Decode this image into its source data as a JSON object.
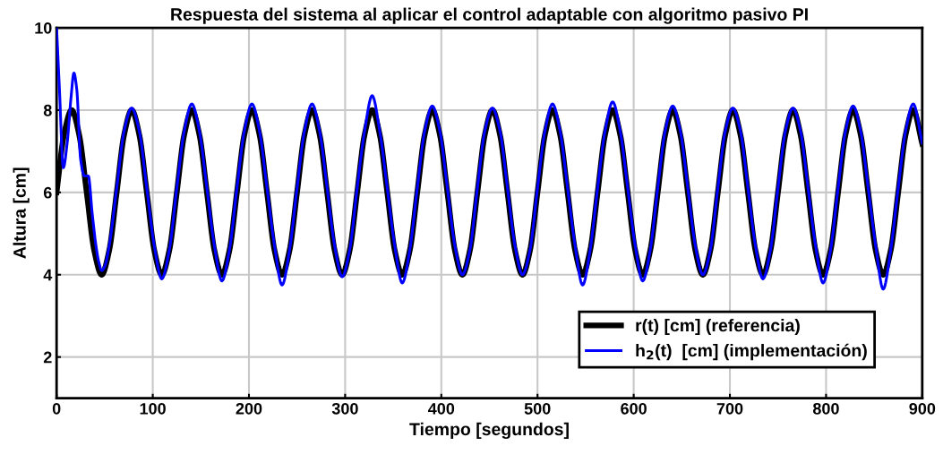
{
  "chart_data": {
    "type": "line",
    "title": "Respuesta del sistema al aplicar el control adaptable con algoritmo pasivo PI",
    "xlabel": "Tiempo [segundos]",
    "ylabel": "Altura [cm]",
    "xlim": [
      0,
      900
    ],
    "xticks": [
      0,
      100,
      200,
      300,
      400,
      500,
      600,
      700,
      800,
      900
    ],
    "ylim": [
      1,
      10
    ],
    "yticks": [
      2,
      4,
      6,
      8,
      10
    ],
    "grid": true,
    "legend": "bottom right",
    "marker": "none",
    "line_style": "solid",
    "series": [
      {
        "name": "r(t) [cm] (referencia)",
        "color": "#000000",
        "x": [
          0,
          7.8,
          15.6,
          23.4,
          31.3,
          39.1,
          46.9,
          54.7,
          62.5,
          70.3,
          78.1,
          85.9,
          93.8,
          101.6,
          109.4,
          117.2,
          125,
          132.8,
          140.6,
          148.4,
          156.3,
          164.1,
          171.9,
          179.7,
          187.5,
          195.3,
          203.1,
          210.9,
          218.8,
          226.6,
          234.4,
          242.2,
          250,
          257.8,
          265.6,
          273.4,
          281.3,
          289.1,
          296.9,
          304.7,
          312.5,
          320.3,
          328.1,
          335.9,
          343.8,
          351.6,
          359.4,
          367.2,
          375,
          382.8,
          390.6,
          398.4,
          406.3,
          414.1,
          421.9,
          429.7,
          437.5,
          445.3,
          453.1,
          460.9,
          468.8,
          476.6,
          484.4,
          492.2,
          500,
          507.8,
          515.6,
          523.4,
          531.3,
          539.1,
          546.9,
          554.7,
          562.5,
          570.3,
          578.1,
          585.9,
          593.8,
          601.6,
          609.4,
          617.2,
          625,
          632.8,
          640.6,
          648.4,
          656.3,
          664.1,
          671.9,
          679.7,
          687.5,
          695.3,
          703.1,
          710.9,
          718.8,
          726.6,
          734.4,
          742.2,
          750,
          757.8,
          765.6,
          773.4,
          781.3,
          789.1,
          796.9,
          804.7,
          812.5,
          820.3,
          828.1,
          835.9,
          843.8,
          851.6,
          859.4,
          867.2,
          875,
          882.8,
          890.6,
          900
        ],
        "values": [
          6,
          7.41,
          8,
          7.41,
          6,
          4.59,
          4,
          4.59,
          6,
          7.41,
          8,
          7.41,
          6,
          4.59,
          4,
          4.59,
          6,
          7.41,
          8,
          7.41,
          6,
          4.59,
          4,
          4.59,
          6,
          7.41,
          8,
          7.41,
          6,
          4.59,
          4,
          4.59,
          6,
          7.41,
          8,
          7.41,
          6,
          4.59,
          4,
          4.59,
          6,
          7.41,
          8,
          7.41,
          6,
          4.59,
          4,
          4.59,
          6,
          7.41,
          8,
          7.41,
          6,
          4.59,
          4,
          4.59,
          6,
          7.41,
          8,
          7.41,
          6,
          4.59,
          4,
          4.59,
          6,
          7.41,
          8,
          7.41,
          6,
          4.59,
          4,
          4.59,
          6,
          7.41,
          8,
          7.41,
          6,
          4.59,
          4,
          4.59,
          6,
          7.41,
          8,
          7.41,
          6,
          4.59,
          4,
          4.59,
          6,
          7.41,
          8,
          7.41,
          6,
          4.59,
          4,
          4.59,
          6,
          7.41,
          8,
          7.41,
          6,
          4.59,
          4,
          4.59,
          6,
          7.41,
          8,
          7.41,
          6,
          4.59,
          4,
          4.59,
          6,
          7.41,
          8,
          7.18
        ]
      },
      {
        "name": "h$_{2}$(t)  [cm] (implementación)",
        "color": "#0000ff",
        "x": [
          0,
          3,
          7,
          11,
          15,
          18,
          21,
          25,
          29,
          33,
          37,
          41,
          44,
          47,
          50,
          54.7,
          62.5,
          70.3,
          78.1,
          85.9,
          93.8,
          101.6,
          109.4,
          117.2,
          125,
          132.8,
          140.6,
          148.4,
          156.3,
          164.1,
          171.9,
          179.7,
          187.5,
          195.3,
          203.1,
          210.9,
          218.8,
          226.6,
          234.4,
          242.2,
          250,
          257.8,
          265.6,
          273.4,
          281.3,
          289.1,
          296.9,
          304.7,
          312.5,
          320.3,
          328.1,
          335.9,
          343.8,
          351.6,
          359.4,
          367.2,
          375,
          382.8,
          390.6,
          398.4,
          406.3,
          414.1,
          421.9,
          429.7,
          437.5,
          445.3,
          453.1,
          460.9,
          468.8,
          476.6,
          484.4,
          492.2,
          500,
          507.8,
          515.6,
          523.4,
          531.3,
          539.1,
          546.9,
          554.7,
          562.5,
          570.3,
          578.1,
          585.9,
          593.8,
          601.6,
          609.4,
          617.2,
          625,
          632.8,
          640.6,
          648.4,
          656.3,
          664.1,
          671.9,
          679.7,
          687.5,
          695.3,
          703.1,
          710.9,
          718.8,
          726.6,
          734.4,
          742.2,
          750,
          757.8,
          765.6,
          773.4,
          781.3,
          789.1,
          796.9,
          804.7,
          812.5,
          820.3,
          828.1,
          835.9,
          843.8,
          851.6,
          859.4,
          867.2,
          875,
          882.8,
          890.6,
          900
        ],
        "values": [
          10,
          8.5,
          6.6,
          7.2,
          8.3,
          8.9,
          8.5,
          6.8,
          6.4,
          6.4,
          5.5,
          4.7,
          4.3,
          4.1,
          4.2,
          4.7,
          6.1,
          7.5,
          8.05,
          7.5,
          6.1,
          4.7,
          3.9,
          4.6,
          6.1,
          7.5,
          8.15,
          7.5,
          6.1,
          4.7,
          3.85,
          4.6,
          6.1,
          7.5,
          8.15,
          7.5,
          6.1,
          4.7,
          3.75,
          4.6,
          6.1,
          7.5,
          8.15,
          7.5,
          6.1,
          4.7,
          3.95,
          4.6,
          6.1,
          7.5,
          8.35,
          7.5,
          6.1,
          4.7,
          3.8,
          4.6,
          6.1,
          7.5,
          8.1,
          7.5,
          6.1,
          4.7,
          4.0,
          4.6,
          6.1,
          7.5,
          8.05,
          7.5,
          6.1,
          4.7,
          4.0,
          4.6,
          6.1,
          7.5,
          8.15,
          7.5,
          6.1,
          4.7,
          3.75,
          4.6,
          6.1,
          7.5,
          8.2,
          7.5,
          6.1,
          4.7,
          3.85,
          4.6,
          6.1,
          7.5,
          8.1,
          7.5,
          6.1,
          4.7,
          4.0,
          4.6,
          6.1,
          7.5,
          8.05,
          7.5,
          6.1,
          4.7,
          3.9,
          4.6,
          6.1,
          7.5,
          8.05,
          7.5,
          6.1,
          4.7,
          3.8,
          4.6,
          6.1,
          7.5,
          8.1,
          7.5,
          6.1,
          4.7,
          3.65,
          4.6,
          6.1,
          7.5,
          8.15,
          7.2
        ]
      }
    ]
  }
}
